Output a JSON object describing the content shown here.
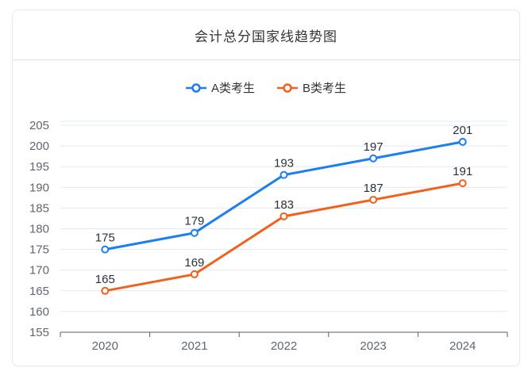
{
  "card": {
    "title": "会计总分国家线趋势图"
  },
  "chart_data": {
    "type": "line",
    "title": "会计总分国家线趋势图",
    "categories": [
      "2020",
      "2021",
      "2022",
      "2023",
      "2024"
    ],
    "series": [
      {
        "name": "A类考生",
        "color": "#1b7ef2",
        "values": [
          175,
          179,
          193,
          197,
          201
        ]
      },
      {
        "name": "B类考生",
        "color": "#f2611b",
        "values": [
          165,
          169,
          183,
          187,
          191
        ]
      }
    ],
    "ylim": [
      155,
      205
    ],
    "ytick_interval": 5,
    "grid": true,
    "legend_position": "top-center",
    "point_labels": true,
    "marker": "empty-circle"
  },
  "colors": {
    "grid_line": "#e3e9f4",
    "axis_line": "#565f69",
    "axis_label": "#5f6672",
    "value_label": "#2b313b",
    "point_fill": "#ffffff"
  }
}
